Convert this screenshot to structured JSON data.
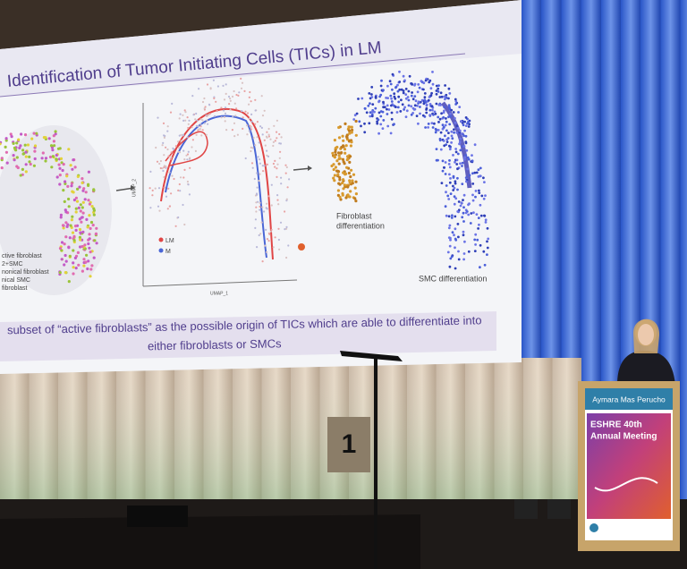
{
  "slide": {
    "title": "Identification of Tumor Initiating Cells (TICs) in LM",
    "cluster_labels": [
      "ctive fibroblast",
      "2+SMC",
      "nonical fibroblast",
      "nical SMC",
      "fibroblast"
    ],
    "legend": [
      "LM",
      "M"
    ],
    "axis_labels": [
      "UMAP_1",
      "UMAP_2"
    ],
    "annotations": [
      "Fibroblast",
      "differentiation",
      "SMC differentiation"
    ],
    "caption": [
      "subset of “active fibroblasts” as the possible origin of TICs which are able to differentiate into",
      "either fibroblasts or SMCs"
    ]
  },
  "stage_sign": "1",
  "podium": {
    "speaker": "Aymara Mas Perucho",
    "event": [
      "ESHRE 40th",
      "Annual Meeting"
    ]
  }
}
